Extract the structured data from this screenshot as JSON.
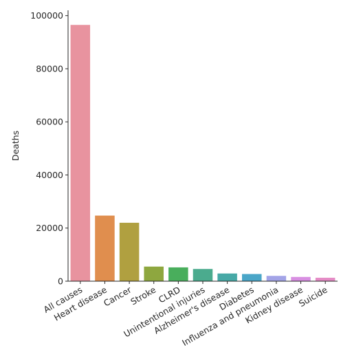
{
  "chart_data": {
    "type": "bar",
    "title": "",
    "xlabel": "",
    "ylabel": "Deaths",
    "ylim": [
      0,
      102000
    ],
    "yticks": [
      0,
      20000,
      40000,
      60000,
      80000,
      100000
    ],
    "grid": false,
    "legend": "none",
    "categories": [
      "All causes",
      "Heart disease",
      "Cancer",
      "Stroke",
      "CLRD",
      "Unintentional injuries",
      "Alzheimer's disease",
      "Diabetes",
      "Influenza and pneumonia",
      "Kidney disease",
      "Suicide"
    ],
    "values": [
      96500,
      24700,
      22000,
      5500,
      5200,
      4600,
      2900,
      2700,
      2000,
      1600,
      1300
    ],
    "colors": [
      "#e8939f",
      "#e08e4e",
      "#b0a040",
      "#8ea73f",
      "#49ae5c",
      "#4bab8e",
      "#47a9a6",
      "#4aa6c8",
      "#a3a4e7",
      "#d88fe2",
      "#e58cc6"
    ]
  }
}
